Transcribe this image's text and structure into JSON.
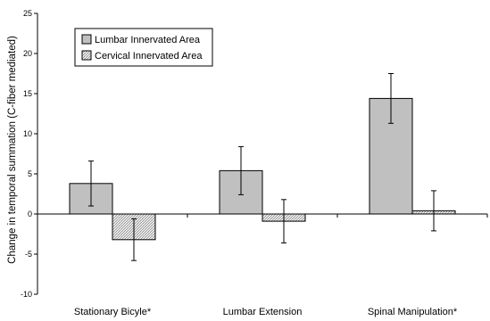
{
  "chart_data": {
    "type": "bar",
    "categories": [
      "Stationary Bicyle*",
      "Lumbar Extension",
      "Spinal Manipulation*"
    ],
    "series": [
      {
        "name": "Lumbar Innervated Area",
        "values": [
          3.8,
          5.4,
          14.4
        ],
        "error": [
          2.8,
          3.0,
          3.1
        ],
        "color": "#c0c0c0",
        "pattern": "solid"
      },
      {
        "name": "Cervical Innervated Area",
        "values": [
          -3.2,
          -0.9,
          0.4
        ],
        "error": [
          2.6,
          2.7,
          2.5
        ],
        "color": "#e8e8e8",
        "pattern": "hatched"
      }
    ],
    "ylabel": "Change in temporal summation (C-fiber mediated)",
    "xlabel": "",
    "ylim": [
      -10,
      25
    ],
    "yticks": [
      -10,
      -5,
      0,
      5,
      10,
      15,
      20,
      25
    ],
    "legend": "top-left",
    "grid": false
  }
}
